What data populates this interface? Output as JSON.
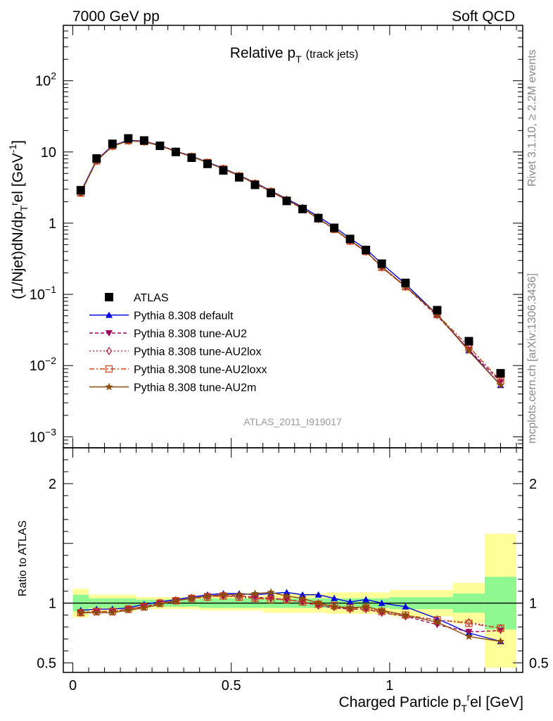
{
  "header": {
    "left": "7000 GeV pp",
    "right": "Soft QCD"
  },
  "title": {
    "main": "Relative p",
    "sub": "T",
    "extra": "(track jets)"
  },
  "side_labels": {
    "rivet": "Rivet 3.1.10, ≥ 2.2M events",
    "mcplots": "mcplots.cern.ch [arXiv:1306.3436]"
  },
  "analysis_id": "ATLAS_2011_I919017",
  "colors": {
    "atlas": "#000000",
    "default": "#0000e0",
    "au2": "#a0005a",
    "au2lox": "#b0304a",
    "au2loxx": "#d04818",
    "au2m": "#8a4a08",
    "band_green": "#90f890",
    "band_yellow": "#ffff99"
  },
  "chart_data": [
    {
      "type": "line",
      "ylabel": {
        "main": "(1/Njet)dN/dp",
        "sub": "T",
        "sup": "r",
        "tail": "el [GeV",
        "tailsup": "-1",
        "end": "]"
      },
      "yscale": "log",
      "ylim": [
        0.0007,
        600
      ],
      "xlim": [
        -0.03,
        1.42
      ],
      "y_ticks": [
        {
          "v": 0.001,
          "b": "10",
          "e": "−3"
        },
        {
          "v": 0.01,
          "b": "10",
          "e": "−2"
        },
        {
          "v": 0.1,
          "b": "10",
          "e": "−1"
        },
        {
          "v": 1,
          "b": "1",
          "e": ""
        },
        {
          "v": 10,
          "b": "10",
          "e": ""
        },
        {
          "v": 100,
          "b": "10",
          "e": "2"
        }
      ],
      "legend": {
        "position": "bottom-left",
        "entries": [
          {
            "key": "atlas",
            "label": "ATLAS"
          },
          {
            "key": "default",
            "label": "Pythia 8.308 default"
          },
          {
            "key": "au2",
            "label": "Pythia 8.308 tune-AU2"
          },
          {
            "key": "au2lox",
            "label": "Pythia 8.308 tune-AU2lox"
          },
          {
            "key": "au2loxx",
            "label": "Pythia 8.308 tune-AU2loxx"
          },
          {
            "key": "au2m",
            "label": "Pythia 8.308 tune-AU2m"
          }
        ]
      },
      "x": [
        0.025,
        0.075,
        0.125,
        0.175,
        0.225,
        0.275,
        0.325,
        0.375,
        0.425,
        0.475,
        0.525,
        0.575,
        0.625,
        0.675,
        0.725,
        0.775,
        0.825,
        0.875,
        0.925,
        0.975,
        1.05,
        1.15,
        1.25,
        1.35
      ],
      "atlas": [
        2.9,
        8.1,
        13.0,
        15.5,
        14.5,
        12.2,
        10.0,
        8.3,
        6.8,
        5.5,
        4.4,
        3.45,
        2.65,
        2.05,
        1.58,
        1.18,
        0.86,
        0.6,
        0.42,
        0.27,
        0.145,
        0.06,
        0.022,
        0.0078
      ],
      "series": [
        {
          "key": "default",
          "name": "Pythia 8.308 default",
          "values": [
            2.75,
            7.7,
            12.3,
            14.6,
            14.2,
            12.4,
            10.3,
            8.7,
            7.2,
            5.9,
            4.7,
            3.7,
            2.85,
            2.2,
            1.68,
            1.24,
            0.89,
            0.61,
            0.435,
            0.27,
            0.14,
            0.052,
            0.0165,
            0.0053
          ]
        },
        {
          "key": "au2",
          "name": "Pythia 8.308 tune-AU2",
          "values": [
            2.65,
            7.5,
            12.1,
            14.4,
            14.0,
            12.3,
            10.2,
            8.6,
            7.1,
            5.8,
            4.65,
            3.6,
            2.8,
            2.12,
            1.6,
            1.16,
            0.83,
            0.56,
            0.4,
            0.24,
            0.128,
            0.05,
            0.0167,
            0.0059
          ]
        },
        {
          "key": "au2lox",
          "name": "Pythia 8.308 tune-AU2lox",
          "values": [
            2.65,
            7.5,
            12.1,
            14.4,
            14.0,
            12.3,
            10.2,
            8.6,
            7.1,
            5.8,
            4.6,
            3.58,
            2.78,
            2.1,
            1.6,
            1.15,
            0.82,
            0.56,
            0.4,
            0.24,
            0.128,
            0.052,
            0.0185,
            0.0061
          ]
        },
        {
          "key": "au2loxx",
          "name": "Pythia 8.308 tune-AU2loxx",
          "values": [
            2.65,
            7.5,
            12.1,
            14.4,
            14.0,
            12.3,
            10.2,
            8.6,
            7.1,
            5.8,
            4.6,
            3.58,
            2.78,
            2.1,
            1.6,
            1.15,
            0.82,
            0.56,
            0.4,
            0.24,
            0.128,
            0.052,
            0.0183,
            0.0061
          ]
        },
        {
          "key": "au2m",
          "name": "Pythia 8.308 tune-AU2m",
          "values": [
            2.65,
            7.5,
            12.0,
            14.3,
            13.9,
            12.2,
            10.1,
            8.6,
            7.1,
            5.8,
            4.65,
            3.64,
            2.82,
            2.15,
            1.62,
            1.17,
            0.83,
            0.57,
            0.405,
            0.245,
            0.13,
            0.052,
            0.016,
            0.0053
          ]
        }
      ]
    },
    {
      "type": "line",
      "ylabel": "Ratio to ATLAS",
      "xlabel": {
        "main": "Charged Particle p",
        "sub": "T",
        "sup": "r",
        "tail": "el [GeV]"
      },
      "yscale": "linear",
      "ylim": [
        0.42,
        2.3
      ],
      "xlim": [
        -0.03,
        1.42
      ],
      "y_ticks": [
        {
          "v": 0.5,
          "t": "0.5"
        },
        {
          "v": 1,
          "t": "1"
        },
        {
          "v": 2,
          "t": "2"
        }
      ],
      "x_ticks": [
        {
          "v": 0,
          "t": "0"
        },
        {
          "v": 0.5,
          "t": "0.5"
        },
        {
          "v": 1,
          "t": "1"
        }
      ],
      "bands": [
        {
          "x0": 0.0,
          "x1": 0.05,
          "green": [
            0.93,
            1.07
          ],
          "yellow": [
            0.88,
            1.12
          ]
        },
        {
          "x0": 0.05,
          "x1": 0.2,
          "green": [
            0.96,
            1.04
          ],
          "yellow": [
            0.93,
            1.07
          ]
        },
        {
          "x0": 0.2,
          "x1": 0.4,
          "green": [
            0.97,
            1.03
          ],
          "yellow": [
            0.95,
            1.05
          ]
        },
        {
          "x0": 0.4,
          "x1": 0.6,
          "green": [
            0.96,
            1.04
          ],
          "yellow": [
            0.94,
            1.06
          ]
        },
        {
          "x0": 0.6,
          "x1": 0.8,
          "green": [
            0.96,
            1.04
          ],
          "yellow": [
            0.92,
            1.08
          ]
        },
        {
          "x0": 0.8,
          "x1": 1.0,
          "green": [
            0.96,
            1.04
          ],
          "yellow": [
            0.91,
            1.09
          ]
        },
        {
          "x0": 1.0,
          "x1": 1.2,
          "green": [
            0.95,
            1.05
          ],
          "yellow": [
            0.89,
            1.11
          ]
        },
        {
          "x0": 1.2,
          "x1": 1.3,
          "green": [
            0.92,
            1.08
          ],
          "yellow": [
            0.83,
            1.17
          ]
        },
        {
          "x0": 1.3,
          "x1": 1.4,
          "green": [
            0.78,
            1.22
          ],
          "yellow": [
            0.46,
            1.58
          ]
        }
      ],
      "x": [
        0.025,
        0.075,
        0.125,
        0.175,
        0.225,
        0.275,
        0.325,
        0.375,
        0.425,
        0.475,
        0.525,
        0.575,
        0.625,
        0.675,
        0.725,
        0.775,
        0.825,
        0.875,
        0.925,
        0.975,
        1.05,
        1.15,
        1.25,
        1.35
      ],
      "series": [
        {
          "key": "default",
          "name": "Pythia 8.308 default",
          "values": [
            0.94,
            0.95,
            0.95,
            0.96,
            0.99,
            1.01,
            1.03,
            1.05,
            1.07,
            1.08,
            1.08,
            1.07,
            1.08,
            1.09,
            1.07,
            1.07,
            1.04,
            1.01,
            1.03,
            1.0,
            0.97,
            0.87,
            0.75,
            0.68
          ]
        },
        {
          "key": "au2",
          "name": "Pythia 8.308 tune-AU2",
          "values": [
            0.92,
            0.93,
            0.93,
            0.95,
            0.97,
            1.0,
            1.02,
            1.04,
            1.06,
            1.06,
            1.06,
            1.05,
            1.04,
            1.03,
            1.01,
            0.98,
            0.96,
            0.95,
            0.95,
            0.92,
            0.89,
            0.82,
            0.76,
            0.77
          ]
        },
        {
          "key": "au2lox",
          "name": "Pythia 8.308 tune-AU2lox",
          "values": [
            0.92,
            0.93,
            0.93,
            0.95,
            0.97,
            1.0,
            1.02,
            1.04,
            1.05,
            1.06,
            1.05,
            1.04,
            1.04,
            1.03,
            1.01,
            0.98,
            0.97,
            0.95,
            0.95,
            0.92,
            0.89,
            0.86,
            0.84,
            0.79
          ]
        },
        {
          "key": "au2loxx",
          "name": "Pythia 8.308 tune-AU2loxx",
          "values": [
            0.92,
            0.93,
            0.93,
            0.95,
            0.97,
            1.0,
            1.02,
            1.04,
            1.05,
            1.06,
            1.05,
            1.04,
            1.03,
            1.03,
            1.01,
            0.99,
            0.98,
            0.96,
            0.96,
            0.93,
            0.9,
            0.86,
            0.83,
            0.79
          ]
        },
        {
          "key": "au2m",
          "name": "Pythia 8.308 tune-AU2m",
          "values": [
            0.92,
            0.92,
            0.92,
            0.94,
            0.96,
            0.99,
            1.02,
            1.04,
            1.06,
            1.07,
            1.07,
            1.08,
            1.09,
            1.06,
            1.04,
            1.0,
            0.97,
            0.96,
            0.97,
            0.94,
            0.9,
            0.84,
            0.72,
            0.68
          ]
        }
      ]
    }
  ]
}
